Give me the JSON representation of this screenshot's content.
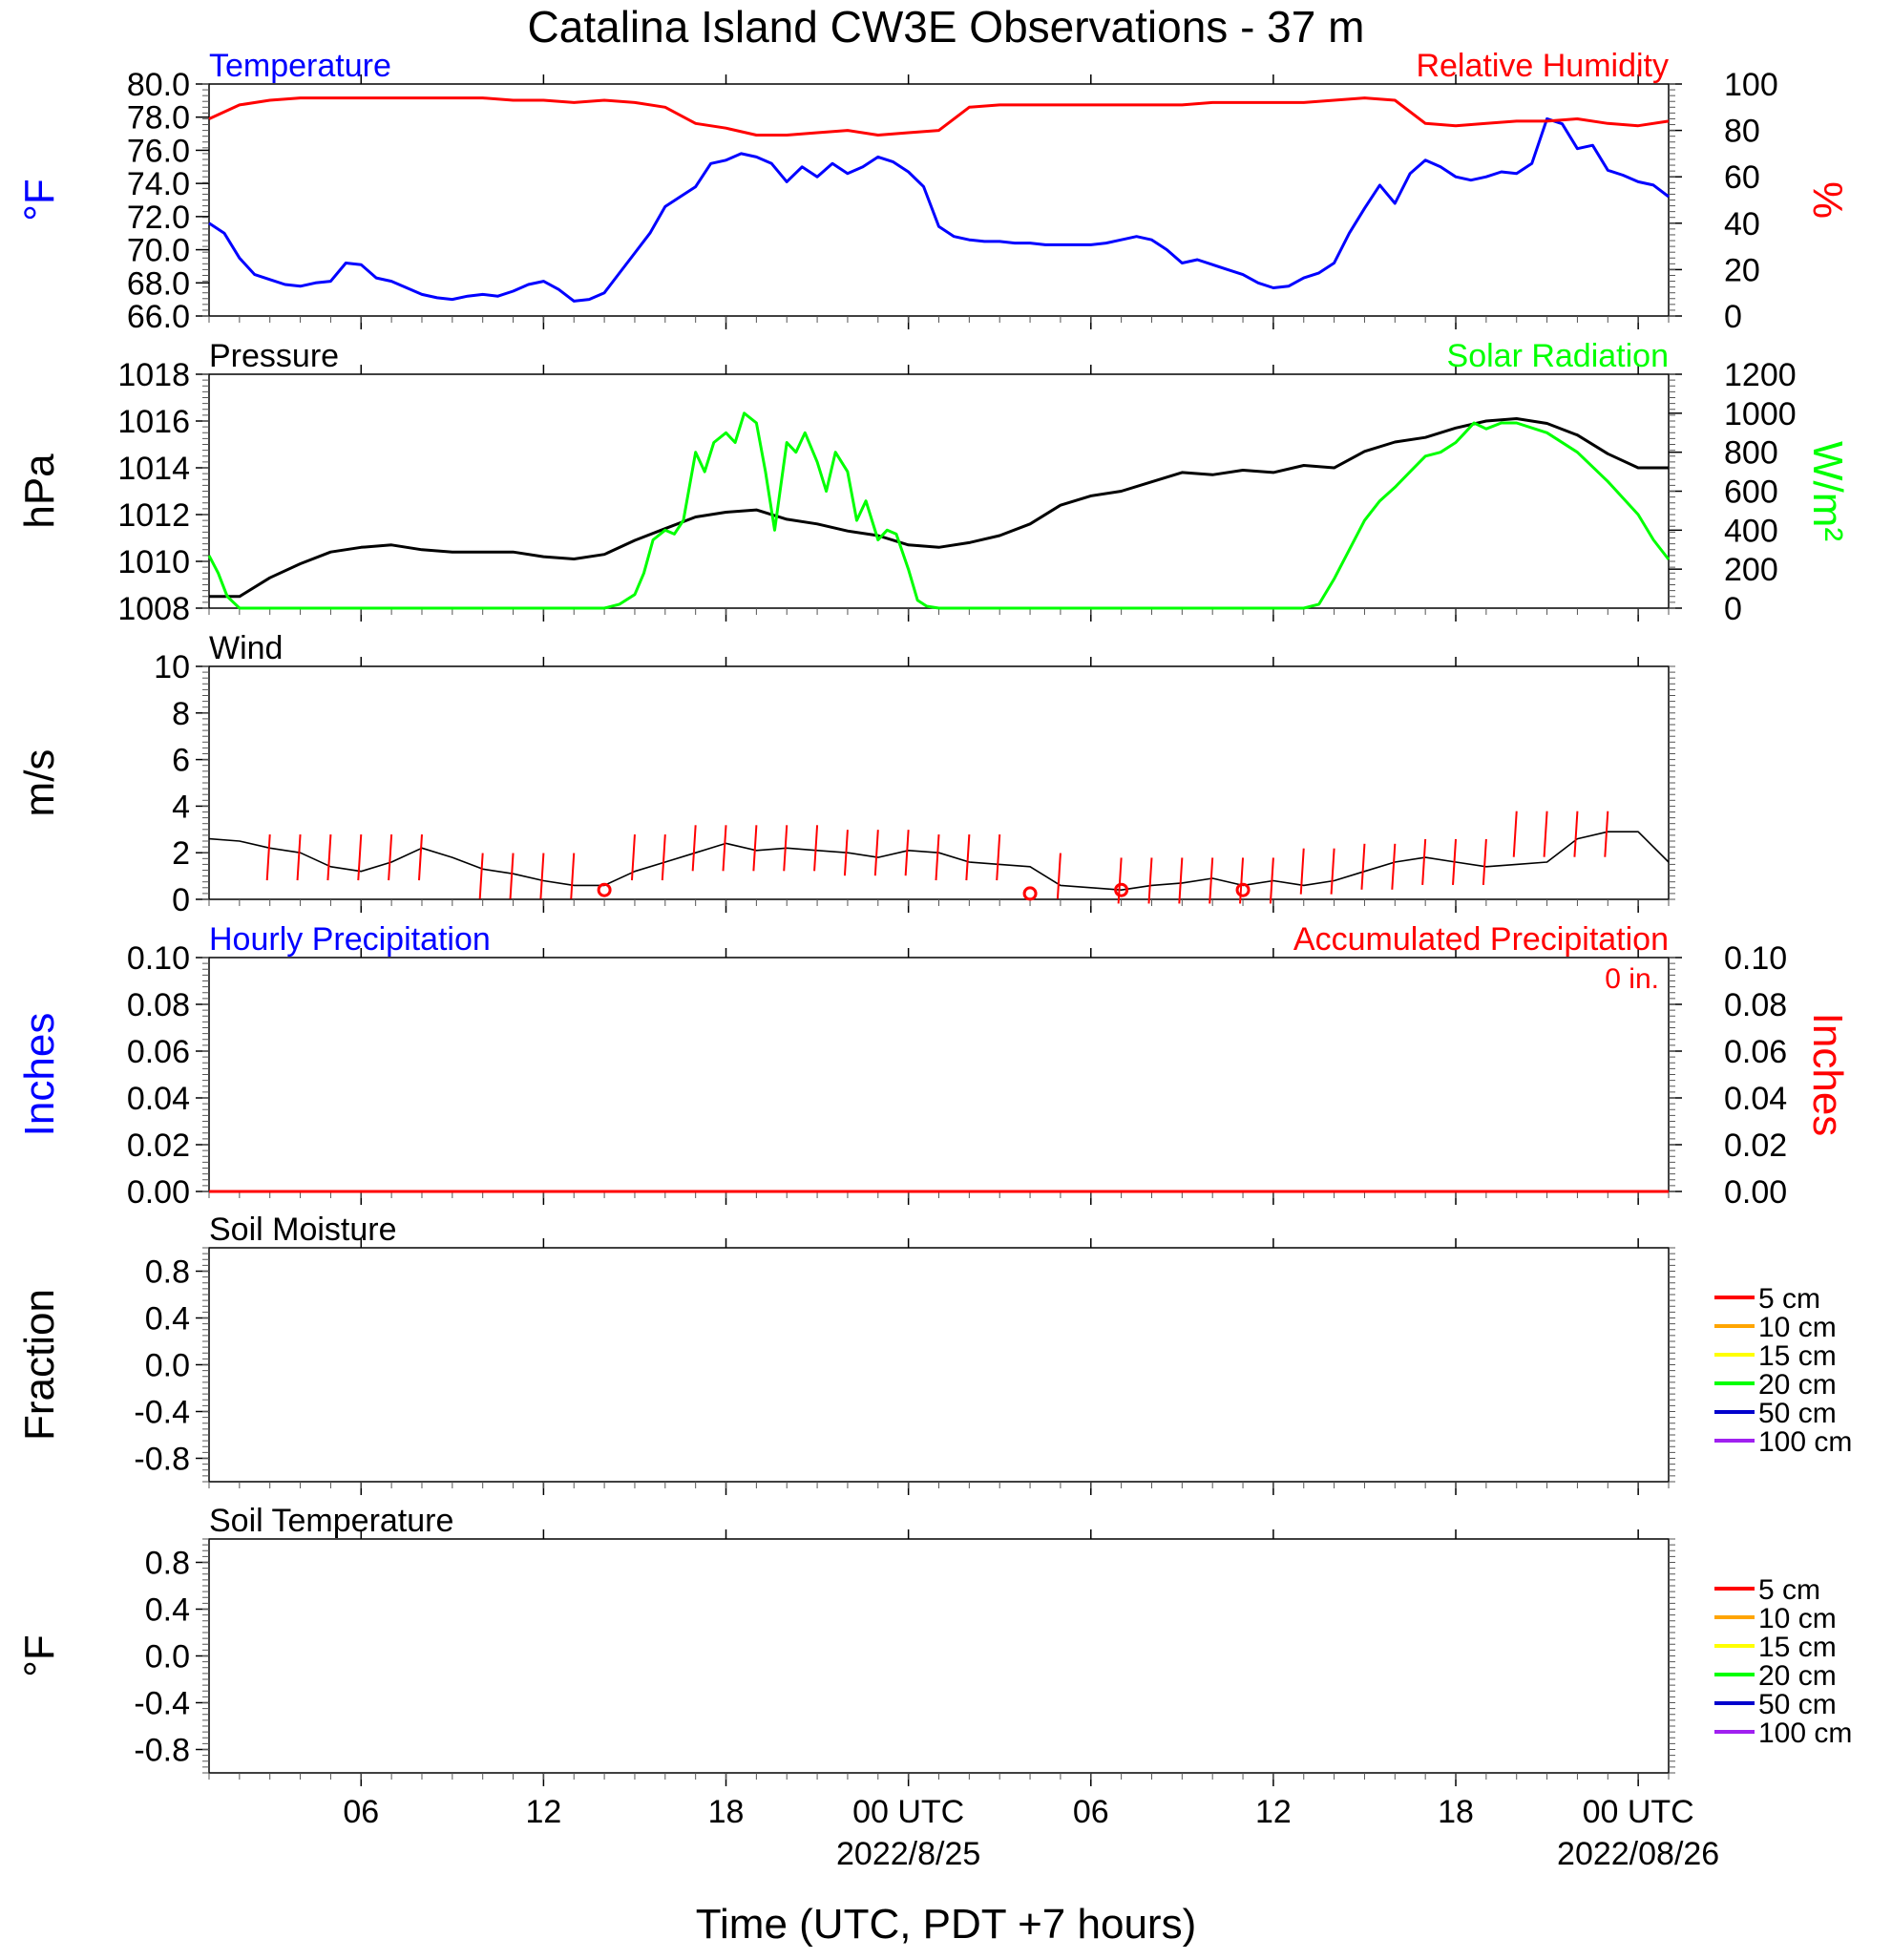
{
  "title": "Catalina Island CW3E Observations - 37 m",
  "xlabel": "Time (UTC, PDT +7 hours)",
  "x_ticks": [
    "06",
    "12",
    "18",
    "00 UTC",
    "06",
    "12",
    "18",
    "00 UTC"
  ],
  "x_tick_hours": [
    6,
    12,
    18,
    24,
    30,
    36,
    42,
    48
  ],
  "x_date_labels": [
    {
      "hour": 24,
      "text": "2022/8/25"
    },
    {
      "hour": 48,
      "text": "2022/08/26"
    }
  ],
  "x_range_hours": [
    1,
    49
  ],
  "colors": {
    "blue": "#0000ff",
    "red": "#ff0000",
    "green": "#00ff00",
    "black": "#000000",
    "orange": "#ffa500",
    "yellow": "#ffff00",
    "navy": "#0000cd",
    "purple": "#a020f0"
  },
  "chart_data": [
    {
      "id": "temp_rh",
      "type": "line",
      "left_title": "Temperature",
      "right_title": "Relative Humidity",
      "ylabel": "°F",
      "ylabel_right": "%",
      "ylim": [
        66,
        80
      ],
      "ylim_right": [
        0,
        100
      ],
      "yticks": [
        "66.0",
        "68.0",
        "70.0",
        "72.0",
        "74.0",
        "76.0",
        "78.0",
        "80.0"
      ],
      "yticks_right": [
        "0",
        "20",
        "40",
        "60",
        "80",
        "100"
      ],
      "series": [
        {
          "name": "Temperature",
          "axis": "left",
          "color": "#0000ff",
          "x": [
            1,
            1.5,
            2,
            2.5,
            3,
            3.5,
            4,
            4.5,
            5,
            5.5,
            6,
            6.5,
            7,
            7.5,
            8,
            8.5,
            9,
            9.5,
            10,
            10.5,
            11,
            11.5,
            12,
            12.5,
            13,
            13.5,
            14,
            14.5,
            15,
            15.5,
            16,
            16.5,
            17,
            17.5,
            18,
            18.5,
            19,
            19.5,
            20,
            20.5,
            21,
            21.5,
            22,
            22.5,
            23,
            23.5,
            24,
            24.5,
            25,
            25.5,
            26,
            26.5,
            27,
            27.5,
            28,
            28.5,
            29,
            29.5,
            30,
            30.5,
            31,
            31.5,
            32,
            32.5,
            33,
            33.5,
            34,
            34.5,
            35,
            35.5,
            36,
            36.5,
            37,
            37.5,
            38,
            38.5,
            39,
            39.5,
            40,
            40.5,
            41,
            41.5,
            42,
            42.5,
            43,
            43.5,
            44,
            44.5,
            45,
            45.5,
            46,
            46.5,
            47,
            47.5,
            48,
            48.5,
            49
          ],
          "y": [
            71.6,
            71.0,
            69.5,
            68.5,
            68.2,
            67.9,
            67.8,
            68.0,
            68.1,
            69.2,
            69.1,
            68.3,
            68.1,
            67.7,
            67.3,
            67.1,
            67.0,
            67.2,
            67.3,
            67.2,
            67.5,
            67.9,
            68.1,
            67.6,
            66.9,
            67.0,
            67.4,
            68.6,
            69.8,
            71.0,
            72.6,
            73.2,
            73.8,
            75.2,
            75.4,
            75.8,
            75.6,
            75.2,
            74.1,
            75.0,
            74.4,
            75.2,
            74.6,
            75.0,
            75.6,
            75.3,
            74.7,
            73.8,
            71.4,
            70.8,
            70.6,
            70.5,
            70.5,
            70.4,
            70.4,
            70.3,
            70.3,
            70.3,
            70.3,
            70.4,
            70.6,
            70.8,
            70.6,
            70.0,
            69.2,
            69.4,
            69.1,
            68.8,
            68.5,
            68.0,
            67.7,
            67.8,
            68.3,
            68.6,
            69.2,
            71.0,
            72.5,
            73.9,
            72.8,
            74.6,
            75.4,
            75.0,
            74.4,
            74.2,
            74.4,
            74.7,
            74.6,
            75.2,
            77.9,
            77.6,
            76.1,
            76.3,
            74.8,
            74.5,
            74.1,
            73.9,
            73.2
          ],
          "points": 97
        },
        {
          "name": "Relative Humidity",
          "axis": "right",
          "color": "#ff0000",
          "x": [
            1,
            2,
            3,
            4,
            5,
            6,
            7,
            8,
            9,
            10,
            11,
            12,
            13,
            14,
            15,
            16,
            17,
            18,
            19,
            20,
            21,
            22,
            23,
            24,
            25,
            26,
            27,
            28,
            29,
            30,
            31,
            32,
            33,
            34,
            35,
            36,
            37,
            38,
            39,
            40,
            41,
            42,
            43,
            44,
            45,
            46,
            47,
            48,
            49
          ],
          "y": [
            85,
            91,
            93,
            94,
            94,
            94,
            94,
            94,
            94,
            94,
            93,
            93,
            92,
            93,
            92,
            90,
            83,
            81,
            78,
            78,
            79,
            80,
            78,
            79,
            80,
            90,
            91,
            91,
            91,
            91,
            91,
            91,
            91,
            92,
            92,
            92,
            92,
            93,
            94,
            93,
            83,
            82,
            83,
            84,
            84,
            85,
            83,
            82,
            84
          ]
        }
      ]
    },
    {
      "id": "pressure_solar",
      "type": "line",
      "left_title": "Pressure",
      "right_title": "Solar Radiation",
      "ylabel": "hPa",
      "ylabel_right": "W/m²",
      "ylim": [
        1008,
        1018
      ],
      "ylim_right": [
        0,
        1200
      ],
      "yticks": [
        "1008",
        "1010",
        "1012",
        "1014",
        "1016",
        "1018"
      ],
      "yticks_right": [
        "0",
        "200",
        "400",
        "600",
        "800",
        "1000",
        "1200"
      ],
      "series": [
        {
          "name": "Pressure",
          "axis": "left",
          "color": "#000000",
          "x": [
            1,
            2,
            3,
            4,
            5,
            6,
            7,
            8,
            9,
            10,
            11,
            12,
            13,
            14,
            15,
            16,
            17,
            18,
            19,
            20,
            21,
            22,
            23,
            24,
            25,
            26,
            27,
            28,
            29,
            30,
            31,
            32,
            33,
            34,
            35,
            36,
            37,
            38,
            39,
            40,
            41,
            42,
            43,
            44,
            45,
            46,
            47,
            48,
            49
          ],
          "y": [
            1008.5,
            1008.5,
            1009.3,
            1009.9,
            1010.4,
            1010.6,
            1010.7,
            1010.5,
            1010.4,
            1010.4,
            1010.4,
            1010.2,
            1010.1,
            1010.3,
            1010.9,
            1011.4,
            1011.9,
            1012.1,
            1012.2,
            1011.8,
            1011.6,
            1011.3,
            1011.1,
            1010.7,
            1010.6,
            1010.8,
            1011.1,
            1011.6,
            1012.4,
            1012.8,
            1013.0,
            1013.4,
            1013.8,
            1013.7,
            1013.9,
            1013.8,
            1014.1,
            1014.0,
            1014.7,
            1015.1,
            1015.3,
            1015.7,
            1016.0,
            1016.1,
            1015.9,
            1015.4,
            1014.6,
            1014.0,
            1014.0
          ]
        },
        {
          "name": "Solar Radiation",
          "axis": "right",
          "color": "#00ff00",
          "x": [
            1,
            1.3,
            1.6,
            2,
            2.5,
            3,
            4,
            6,
            8,
            10,
            12,
            13,
            14,
            14.5,
            15,
            15.3,
            15.6,
            16,
            16.3,
            16.6,
            17,
            17.3,
            17.6,
            18,
            18.3,
            18.6,
            19,
            19.3,
            19.6,
            20,
            20.3,
            20.6,
            21,
            21.3,
            21.6,
            22,
            22.3,
            22.6,
            23,
            23.3,
            23.6,
            24,
            24.3,
            24.6,
            25,
            26,
            28,
            30,
            32,
            34,
            36,
            37,
            37.5,
            38,
            38.5,
            39,
            39.5,
            40,
            40.5,
            41,
            41.5,
            42,
            42.3,
            42.6,
            43,
            43.5,
            44,
            45,
            46,
            47,
            48,
            48.5,
            49
          ],
          "y": [
            270,
            180,
            60,
            0,
            0,
            0,
            0,
            0,
            0,
            0,
            0,
            0,
            0,
            20,
            70,
            180,
            350,
            400,
            380,
            450,
            800,
            700,
            850,
            900,
            850,
            1000,
            950,
            700,
            400,
            850,
            800,
            900,
            750,
            600,
            800,
            700,
            450,
            550,
            350,
            400,
            380,
            200,
            40,
            10,
            0,
            0,
            0,
            0,
            0,
            0,
            0,
            0,
            20,
            150,
            300,
            450,
            550,
            620,
            700,
            780,
            800,
            850,
            900,
            950,
            920,
            950,
            950,
            900,
            800,
            650,
            480,
            350,
            250
          ]
        }
      ]
    },
    {
      "id": "wind",
      "type": "line",
      "left_title": "Wind",
      "ylabel": "m/s",
      "ylim": [
        0,
        10
      ],
      "yticks": [
        "0",
        "2",
        "4",
        "6",
        "8",
        "10"
      ],
      "series": [
        {
          "name": "Wind",
          "axis": "left",
          "color": "#000000",
          "x": [
            1,
            2,
            3,
            4,
            5,
            6,
            7,
            8,
            9,
            10,
            11,
            12,
            13,
            14,
            15,
            16,
            17,
            18,
            19,
            20,
            21,
            22,
            23,
            24,
            25,
            26,
            27,
            28,
            29,
            30,
            31,
            32,
            33,
            34,
            35,
            36,
            37,
            38,
            39,
            40,
            41,
            42,
            43,
            44,
            45,
            46,
            47,
            48,
            49
          ],
          "y": [
            2.6,
            2.5,
            2.2,
            2.0,
            1.4,
            1.2,
            1.6,
            2.2,
            1.8,
            1.3,
            1.1,
            0.8,
            0.6,
            0.6,
            1.2,
            1.6,
            2.0,
            2.4,
            2.1,
            2.2,
            2.1,
            2.0,
            1.8,
            2.1,
            2.0,
            1.6,
            1.5,
            1.4,
            0.6,
            0.5,
            0.4,
            0.6,
            0.7,
            0.9,
            0.6,
            0.8,
            0.6,
            0.8,
            1.2,
            1.6,
            1.8,
            1.6,
            1.4,
            1.5,
            1.6,
            2.6,
            2.9,
            2.9,
            1.6
          ]
        },
        {
          "name": "Wind barbs",
          "axis": "left",
          "color": "#ff0000",
          "x": [
            3,
            4,
            5,
            6,
            7,
            8,
            10,
            11,
            12,
            13,
            15,
            16,
            17,
            18,
            19,
            20,
            21,
            22,
            23,
            24,
            25,
            26,
            27,
            29,
            31,
            32,
            33,
            34,
            35,
            36,
            37,
            38,
            39,
            40,
            41,
            42,
            43,
            44,
            45,
            46,
            47
          ],
          "y": [
            1.8,
            1.8,
            1.8,
            1.8,
            1.8,
            1.8,
            1.0,
            1.0,
            1.0,
            1.0,
            1.8,
            1.8,
            2.2,
            2.2,
            2.2,
            2.2,
            2.2,
            2.0,
            2.0,
            2.0,
            1.8,
            1.8,
            1.8,
            1.0,
            0.8,
            0.8,
            0.8,
            0.8,
            0.8,
            0.8,
            1.2,
            1.2,
            1.4,
            1.4,
            1.6,
            1.6,
            1.6,
            2.8,
            2.8,
            2.8,
            2.8
          ]
        },
        {
          "name": "Calm",
          "axis": "left",
          "color": "#ff0000",
          "x": [
            14,
            28,
            31,
            35
          ],
          "y": [
            0.4,
            0.25,
            0.4,
            0.4
          ]
        }
      ]
    },
    {
      "id": "precip",
      "type": "line",
      "left_title": "Hourly Precipitation",
      "right_title": "Accumulated Precipitation",
      "annotation": "0 in.",
      "ylabel": "Inches",
      "ylabel_right": "Inches",
      "ylim": [
        0,
        0.1
      ],
      "ylim_right": [
        0,
        0.1
      ],
      "yticks": [
        "0.00",
        "0.02",
        "0.04",
        "0.06",
        "0.08",
        "0.10"
      ],
      "yticks_right": [
        "0.00",
        "0.02",
        "0.04",
        "0.06",
        "0.08",
        "0.10"
      ],
      "series": [
        {
          "name": "Hourly Precipitation",
          "axis": "left",
          "color": "#0000ff",
          "x": [
            1,
            49
          ],
          "y": [
            0,
            0
          ]
        },
        {
          "name": "Accumulated Precipitation",
          "axis": "right",
          "color": "#ff0000",
          "x": [
            1,
            49
          ],
          "y": [
            0,
            0
          ]
        }
      ]
    },
    {
      "id": "soil_moisture",
      "type": "line",
      "left_title": "Soil Moisture",
      "ylabel": "Fraction",
      "ylim": [
        -1,
        1
      ],
      "yticks": [
        "-0.8",
        "-0.4",
        "0.0",
        "0.4",
        "0.8"
      ],
      "legend": [
        {
          "label": "5 cm",
          "color": "#ff0000"
        },
        {
          "label": "10 cm",
          "color": "#ffa500"
        },
        {
          "label": "15 cm",
          "color": "#ffff00"
        },
        {
          "label": "20 cm",
          "color": "#00ff00"
        },
        {
          "label": "50 cm",
          "color": "#0000cd"
        },
        {
          "label": "100 cm",
          "color": "#a020f0"
        }
      ],
      "series": []
    },
    {
      "id": "soil_temp",
      "type": "line",
      "left_title": "Soil Temperature",
      "ylabel": "°F",
      "ylim": [
        -1,
        1
      ],
      "yticks": [
        "-0.8",
        "-0.4",
        "0.0",
        "0.4",
        "0.8"
      ],
      "legend": [
        {
          "label": "5 cm",
          "color": "#ff0000"
        },
        {
          "label": "10 cm",
          "color": "#ffa500"
        },
        {
          "label": "15 cm",
          "color": "#ffff00"
        },
        {
          "label": "20 cm",
          "color": "#00ff00"
        },
        {
          "label": "50 cm",
          "color": "#0000cd"
        },
        {
          "label": "100 cm",
          "color": "#a020f0"
        }
      ],
      "series": []
    }
  ]
}
